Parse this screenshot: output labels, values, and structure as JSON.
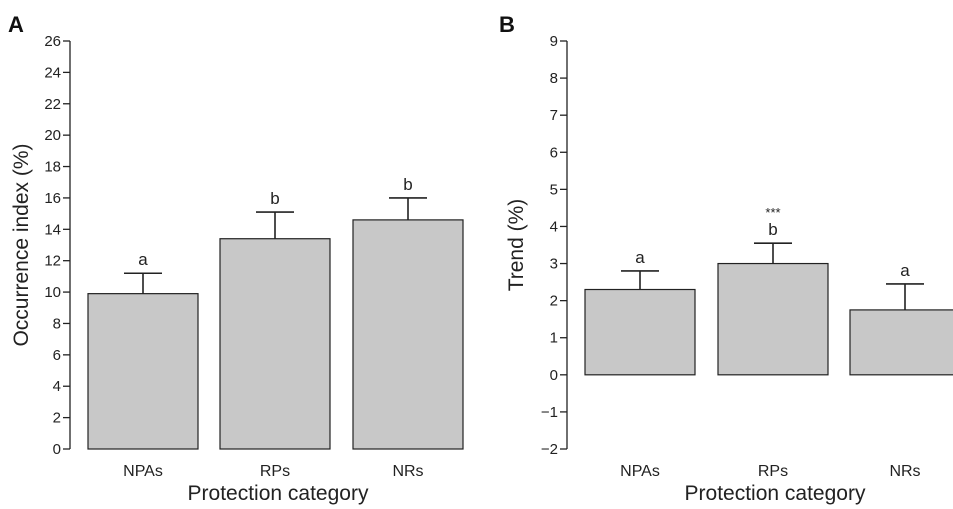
{
  "chart_data": [
    {
      "panel": "A",
      "type": "bar",
      "categories": [
        "NPAs",
        "RPs",
        "NRs"
      ],
      "values": [
        9.9,
        13.4,
        14.6
      ],
      "errors": [
        1.3,
        1.7,
        1.4
      ],
      "sig_letters": [
        "a",
        "b",
        "b"
      ],
      "sig_extra": [
        "",
        "",
        ""
      ],
      "ylabel": "Occurrence index (%)",
      "xlabel": "Protection category",
      "ylim": [
        0,
        26
      ],
      "yticks": [
        0,
        2,
        4,
        6,
        8,
        10,
        12,
        14,
        16,
        18,
        20,
        22,
        24,
        26
      ],
      "bar_color": "#c8c8c8"
    },
    {
      "panel": "B",
      "type": "bar",
      "categories": [
        "NPAs",
        "RPs",
        "NRs"
      ],
      "values": [
        2.3,
        3.0,
        1.75
      ],
      "errors": [
        0.5,
        0.55,
        0.7
      ],
      "sig_letters": [
        "a",
        "b",
        "a"
      ],
      "sig_extra": [
        "",
        "***",
        ""
      ],
      "ylabel": "Trend (%)",
      "xlabel": "Protection category",
      "ylim": [
        -2,
        9
      ],
      "yticks": [
        -2,
        -1,
        0,
        1,
        2,
        3,
        4,
        5,
        6,
        7,
        8,
        9
      ],
      "ytick_labels": [
        "−2",
        "−1",
        "0",
        "1",
        "2",
        "3",
        "4",
        "5",
        "6",
        "7",
        "8",
        "9"
      ],
      "bar_color": "#c8c8c8"
    }
  ]
}
